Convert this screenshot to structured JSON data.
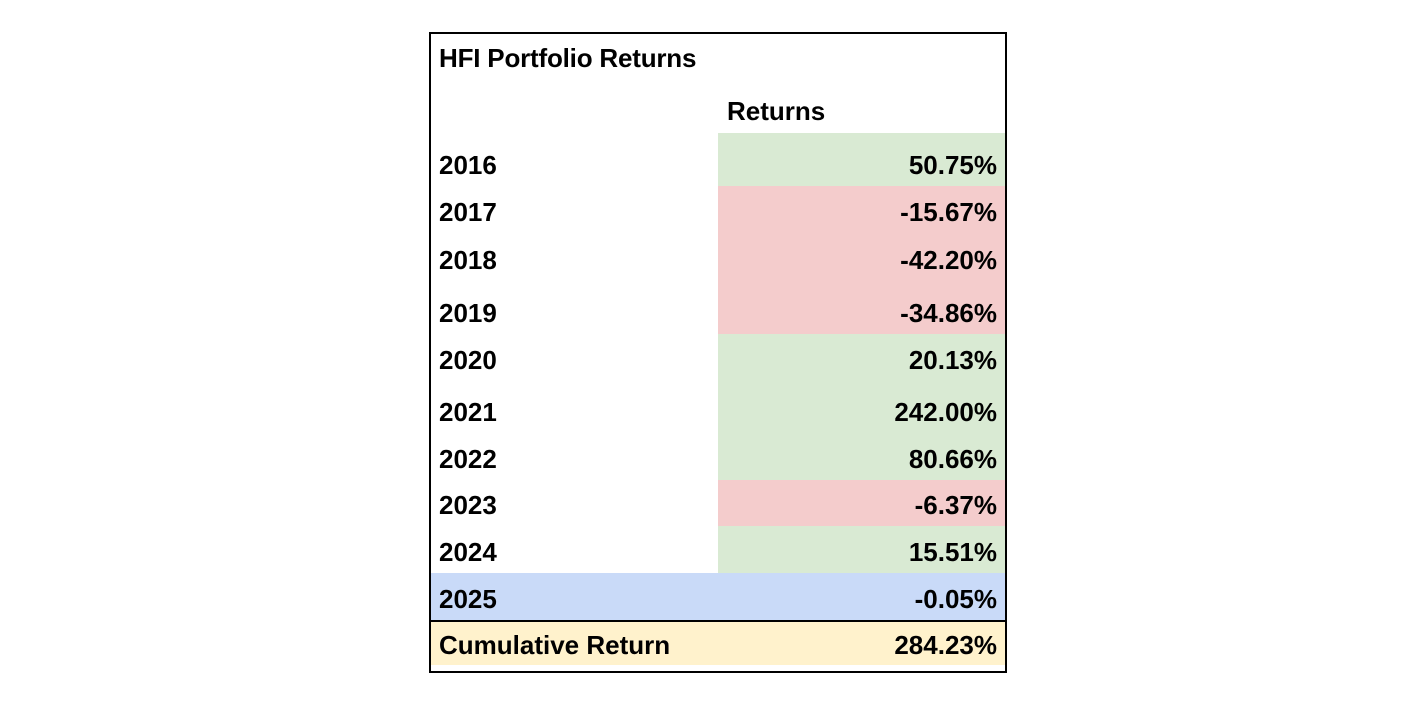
{
  "sheet": {
    "title": "HFI Portfolio Returns",
    "column_header": "Returns",
    "colors": {
      "positive": "#d9ead3",
      "negative": "#f4cccc",
      "current_year": "#c9daf8",
      "cumulative": "#fff2cc"
    },
    "rows": [
      {
        "year": "2016",
        "value": "50.75%",
        "tone": "positive"
      },
      {
        "year": "2017",
        "value": "-15.67%",
        "tone": "negative"
      },
      {
        "year": "2018",
        "value": "-42.20%",
        "tone": "negative"
      },
      {
        "year": "2019",
        "value": "-34.86%",
        "tone": "negative"
      },
      {
        "year": "2020",
        "value": "20.13%",
        "tone": "positive"
      },
      {
        "year": "2021",
        "value": "242.00%",
        "tone": "positive"
      },
      {
        "year": "2022",
        "value": "80.66%",
        "tone": "positive"
      },
      {
        "year": "2023",
        "value": "-6.37%",
        "tone": "negative"
      },
      {
        "year": "2024",
        "value": "15.51%",
        "tone": "positive"
      }
    ],
    "current_year_row": {
      "year": "2025",
      "value": "-0.05%"
    },
    "cumulative_row": {
      "label": "Cumulative Return",
      "value": "284.23%"
    }
  }
}
